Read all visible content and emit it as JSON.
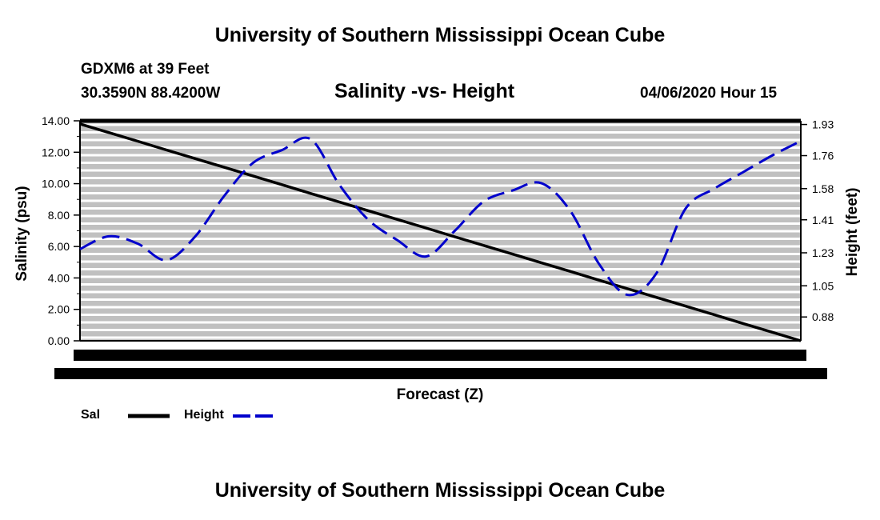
{
  "header": {
    "top_title": "University of Southern Mississippi Ocean Cube",
    "station": "GDXM6 at 39 Feet",
    "coordinates": "30.3590N 88.4200W",
    "chart_title": "Salinity -vs- Height",
    "datetime": "04/06/2020 Hour 15"
  },
  "footer": {
    "bottom_title": "University of Southern Mississippi Ocean Cube"
  },
  "legend": {
    "sal_label": "Sal",
    "height_label": "Height"
  },
  "colors": {
    "plot_background": "#c0c0c0",
    "gridline": "#ffffff",
    "salinity_line": "#000000",
    "height_line": "#0000cc"
  },
  "chart_data": {
    "type": "line",
    "title": "Salinity -vs- Height",
    "xlabel": "Forecast (Z)",
    "ylabel_left": "Salinity (psu)",
    "ylabel_right": "Height (feet)",
    "left_axis": {
      "ylim": [
        0,
        14
      ],
      "tick_labels": [
        "0.00",
        "2.00",
        "4.00",
        "6.00",
        "8.00",
        "10.00",
        "12.00",
        "14.00"
      ]
    },
    "right_axis": {
      "ylim": [
        0.75,
        1.95
      ],
      "tick_values": [
        0.88,
        1.05,
        1.23,
        1.41,
        1.58,
        1.76,
        1.93
      ],
      "tick_labels": [
        "0.88",
        "1.05",
        "1.23",
        "1.41",
        "1.58",
        "1.76",
        "1.93"
      ]
    },
    "x": [
      0,
      4,
      8,
      12,
      16,
      20,
      24,
      28,
      32,
      36,
      40,
      44,
      48,
      52,
      56,
      60,
      64,
      68,
      72,
      76,
      80,
      84,
      88,
      92,
      96,
      100
    ],
    "grid": true,
    "series": [
      {
        "name": "Sal",
        "axis": "left",
        "style": "solid",
        "values": [
          13.8,
          13.25,
          12.7,
          12.14,
          11.59,
          11.04,
          10.49,
          9.94,
          9.38,
          8.83,
          8.28,
          7.73,
          7.18,
          6.62,
          6.07,
          5.52,
          4.97,
          4.42,
          3.86,
          3.31,
          2.76,
          2.21,
          1.66,
          1.1,
          0.55,
          0.0
        ]
      },
      {
        "name": "Height",
        "axis": "right",
        "style": "dashed",
        "values": [
          1.25,
          1.32,
          1.28,
          1.19,
          1.32,
          1.54,
          1.72,
          1.79,
          1.85,
          1.6,
          1.41,
          1.3,
          1.21,
          1.35,
          1.51,
          1.57,
          1.61,
          1.46,
          1.17,
          1.0,
          1.12,
          1.47,
          1.58,
          1.67,
          1.76,
          1.84
        ]
      }
    ]
  }
}
